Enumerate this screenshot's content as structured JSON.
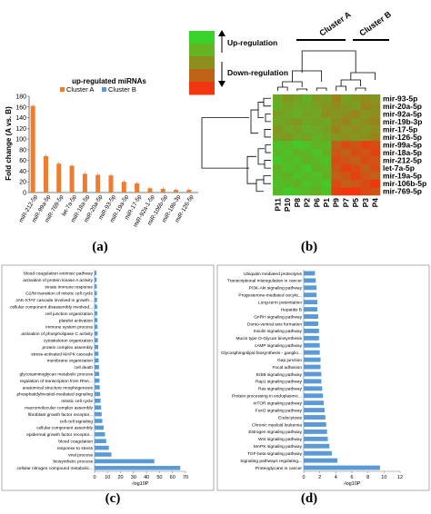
{
  "panels": {
    "a": "(a)",
    "b": "(b)",
    "c": "(c)",
    "d": "(d)"
  },
  "colors": {
    "cluster_a": "#ED7D31",
    "cluster_b": "#5B9BD5",
    "bar_cd": "#5B9BD5",
    "heat_up": "#39D12B",
    "heat_mid": "#8E8E1E",
    "heat_down": "#F0350F"
  },
  "chart_data": [
    {
      "panel": "a",
      "type": "bar",
      "title": "up-regulated miRNAs",
      "ylabel": "Fold change (A vs. B)",
      "xlabel": "",
      "ylim": [
        0,
        180
      ],
      "yticks": [
        0,
        20,
        40,
        60,
        80,
        100,
        120,
        140,
        160,
        180
      ],
      "legend_position": "top",
      "grid": false,
      "categories": [
        "miR-212-5p",
        "miR-99a-5p",
        "miR-769-5p",
        "let-7a-5p",
        "miR-18a-5p",
        "miR-20a-5p",
        "miR-93-5p",
        "miR-19a-5p",
        "miR-17-5p",
        "miR-92a-1-5p",
        "miR-106b-5p",
        "miR-19b-3p",
        "miR-126-5p"
      ],
      "series": [
        {
          "name": "Cluster A",
          "values": [
            162,
            68,
            54,
            50,
            35,
            33,
            32,
            20,
            17,
            8,
            7,
            5,
            5
          ]
        },
        {
          "name": "Cluster B",
          "values": [
            1,
            1,
            1,
            1,
            1,
            1,
            1,
            1,
            1,
            1,
            1,
            1,
            1
          ]
        }
      ]
    },
    {
      "panel": "b",
      "type": "heatmap",
      "legend": [
        "Up-regulation",
        "Down-regulation"
      ],
      "cluster_labels": [
        "Cluster A",
        "Cluster B"
      ],
      "columns": [
        "P11",
        "P10",
        "P8",
        "P2",
        "P6",
        "P1",
        "P9",
        "P7",
        "P5",
        "P3",
        "P4"
      ],
      "rows": [
        "mir-93-5p",
        "mir-20a-5p",
        "mir-92a-5p",
        "mir-19b-3p",
        "mir-17-5p",
        "mir-126-5p",
        "mir-99a-5p",
        "mir-18a-5p",
        "mir-212-5p",
        "let-7a-5p",
        "mir-19a-5p",
        "mir-106b-5p",
        "mir-769-5p"
      ],
      "values": [
        [
          0.3,
          0.1,
          0.2,
          0.4,
          0.1,
          0.2,
          -0.1,
          0.2,
          0.1,
          0.0,
          0.1
        ],
        [
          0.4,
          0.2,
          0.3,
          0.3,
          0.2,
          0.1,
          0.0,
          0.1,
          0.2,
          -0.1,
          0.0
        ],
        [
          0.2,
          0.3,
          0.4,
          0.2,
          0.3,
          0.0,
          0.1,
          0.0,
          -0.1,
          0.1,
          0.0
        ],
        [
          0.3,
          0.2,
          0.1,
          0.3,
          0.2,
          0.3,
          0.0,
          -0.1,
          0.1,
          0.0,
          -0.1
        ],
        [
          0.1,
          0.3,
          0.2,
          0.4,
          0.3,
          0.2,
          -0.1,
          0.1,
          0.0,
          0.1,
          0.0
        ],
        [
          0.2,
          0.1,
          0.3,
          0.2,
          0.4,
          0.3,
          0.1,
          0.0,
          0.1,
          0.0,
          -0.1
        ],
        [
          0.6,
          0.5,
          0.7,
          0.6,
          0.4,
          0.5,
          -0.4,
          -0.6,
          -0.5,
          -0.7,
          -0.6
        ],
        [
          0.5,
          0.6,
          0.4,
          0.5,
          0.6,
          0.4,
          -0.5,
          -0.4,
          -0.6,
          -0.5,
          -0.7
        ],
        [
          0.7,
          0.5,
          0.6,
          0.4,
          0.5,
          0.6,
          -0.6,
          -0.5,
          -0.4,
          -0.6,
          -0.5
        ],
        [
          0.4,
          0.6,
          0.5,
          0.7,
          0.4,
          0.5,
          -0.5,
          -0.7,
          -0.6,
          -0.4,
          -0.6
        ],
        [
          0.5,
          0.4,
          0.6,
          0.5,
          0.6,
          0.4,
          -0.4,
          -0.5,
          -0.7,
          -0.5,
          -0.4
        ],
        [
          0.6,
          0.5,
          0.4,
          0.6,
          0.5,
          0.7,
          -0.6,
          -0.4,
          -0.5,
          -0.6,
          -0.8
        ],
        [
          0.5,
          0.7,
          0.6,
          0.5,
          0.4,
          0.6,
          -0.7,
          -0.9,
          -0.8,
          -0.6,
          -0.5
        ]
      ]
    },
    {
      "panel": "c",
      "type": "bar",
      "orientation": "horizontal",
      "xlabel": "-log10P",
      "xlim": [
        0,
        70
      ],
      "xticks": [
        0,
        10,
        20,
        30,
        40,
        50,
        60,
        70
      ],
      "categories": [
        "blood coagulation extrinsic pathway",
        "activation of protein kinase A activity",
        "innate immune response",
        "G2/M transition of mitotic cell cycle",
        "JAK-STAT cascade involved in growth...",
        "cellular component disassembly involved...",
        "cell junction organization",
        "platelet activation",
        "immune system process",
        "activation of phospholipase C activity",
        "cytoskeleton organization",
        "protein complex assembly",
        "stress-activated MAPK cascade",
        "membrane organization",
        "cell death",
        "glycosaminoglycan metabolic process",
        "regulation of transcription from RNA...",
        "anatomical structure morphogenesis",
        "phosphatidylinositol-mediated signaling",
        "mitotic cell cycle",
        "macromolecular complex assembly",
        "fibroblast growth factor receptor...",
        "cell-cell signaling",
        "cellular component assembly",
        "epidermal growth factor receptor...",
        "blood coagulation",
        "response to stress",
        "viral process",
        "biosynthetic process",
        "cellular nitrogen compound metabolic..."
      ],
      "values": [
        1.5,
        1.6,
        1.7,
        1.8,
        1.9,
        2.0,
        2.1,
        2.2,
        2.3,
        2.4,
        2.6,
        2.8,
        3.0,
        3.2,
        3.4,
        3.6,
        3.8,
        4.0,
        4.3,
        4.6,
        5.0,
        5.5,
        6.0,
        7.0,
        8.0,
        9.0,
        11.0,
        13.0,
        46.0,
        66.0
      ]
    },
    {
      "panel": "d",
      "type": "bar",
      "orientation": "horizontal",
      "xlabel": "-log10P",
      "xlim": [
        0,
        12
      ],
      "xticks": [
        0,
        2,
        4,
        6,
        8,
        10,
        12
      ],
      "categories": [
        "Ubiquitin mediated proteolysis",
        "Transcriptional misregulation in cancer",
        "PI3K-Akt signaling pathway",
        "Progesterone-mediated oocyte...",
        "Long-term potentiation",
        "Hepatitis B",
        "GnRH signaling pathway",
        "Dorso-ventral axis formation",
        "Insulin signaling pathway",
        "Mucin type O-Glycan biosynthesis",
        "cAMP signaling pathway",
        "Glycosphingolipid biosynthesis - ganglio...",
        "Gap junction",
        "Focal adhesion",
        "ErbB signaling pathway",
        "Rap1 signaling pathway",
        "Ras signaling pathway",
        "Protein processing in endoplasmic...",
        "mTOR signaling pathway",
        "FoxO signaling pathway",
        "Endocytosis",
        "Chronic myeloid leukemia",
        "Estrogen signaling pathway",
        "Wnt signaling pathway",
        "MAPK signaling pathway",
        "TGF-beta signaling pathway",
        "Signaling pathways regulating...",
        "Proteoglycans in cancer"
      ],
      "values": [
        1.4,
        1.5,
        1.6,
        1.6,
        1.7,
        1.7,
        1.8,
        1.8,
        1.9,
        1.9,
        2.0,
        2.0,
        2.1,
        2.1,
        2.2,
        2.2,
        2.3,
        2.4,
        2.5,
        2.6,
        2.7,
        2.8,
        2.9,
        3.0,
        3.2,
        3.5,
        4.2,
        9.5
      ]
    }
  ]
}
